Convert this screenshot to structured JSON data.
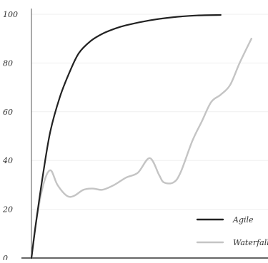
{
  "chart_data": {
    "type": "line",
    "title": "",
    "xlabel": "",
    "ylabel": "",
    "ylim": [
      0,
      100
    ],
    "yticks": [
      0,
      20,
      40,
      60,
      80,
      100
    ],
    "grid": true,
    "legend_position": "bottom-right",
    "series": [
      {
        "name": "Agile",
        "color": "#222222",
        "points": [
          [
            0.0,
            0
          ],
          [
            0.02,
            15
          ],
          [
            0.05,
            35
          ],
          [
            0.08,
            52
          ],
          [
            0.12,
            66
          ],
          [
            0.16,
            76
          ],
          [
            0.2,
            84
          ],
          [
            0.25,
            89
          ],
          [
            0.3,
            92
          ],
          [
            0.35,
            94
          ],
          [
            0.4,
            95.5
          ],
          [
            0.5,
            97.5
          ],
          [
            0.6,
            98.8
          ],
          [
            0.7,
            99.5
          ],
          [
            0.8,
            99.7
          ]
        ]
      },
      {
        "name": "Waterfall",
        "color": "#c4c4c4",
        "points": [
          [
            0.0,
            0
          ],
          [
            0.02,
            15
          ],
          [
            0.05,
            30
          ],
          [
            0.08,
            36
          ],
          [
            0.11,
            30
          ],
          [
            0.15,
            25.5
          ],
          [
            0.18,
            25.5
          ],
          [
            0.22,
            28
          ],
          [
            0.26,
            28.5
          ],
          [
            0.3,
            28
          ],
          [
            0.35,
            30
          ],
          [
            0.4,
            33
          ],
          [
            0.45,
            35
          ],
          [
            0.5,
            41
          ],
          [
            0.54,
            34
          ],
          [
            0.56,
            31
          ],
          [
            0.6,
            31
          ],
          [
            0.63,
            35
          ],
          [
            0.68,
            48
          ],
          [
            0.72,
            56
          ],
          [
            0.76,
            64
          ],
          [
            0.8,
            67
          ],
          [
            0.84,
            71
          ],
          [
            0.88,
            80
          ],
          [
            0.93,
            90
          ]
        ]
      }
    ]
  }
}
